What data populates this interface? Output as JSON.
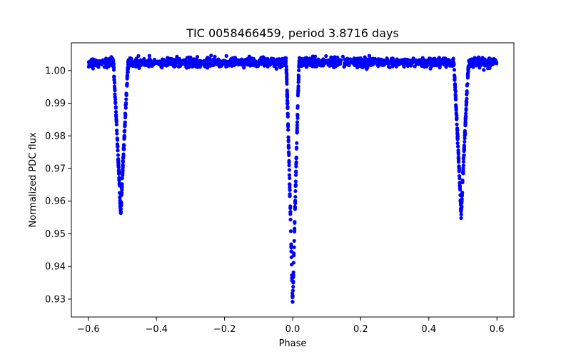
{
  "chart_data": {
    "type": "scatter",
    "title": "TIC 0058466459, period 3.8716 days",
    "xlabel": "Phase",
    "ylabel": "Normalized PDC flux",
    "xlim": [
      -0.65,
      0.65
    ],
    "ylim": [
      0.9245,
      1.0085
    ],
    "xticks": [
      -0.6,
      -0.4,
      -0.2,
      0.0,
      0.2,
      0.4,
      0.6
    ],
    "xtick_labels": [
      "−0.6",
      "−0.4",
      "−0.2",
      "0.0",
      "0.2",
      "0.4",
      "0.6"
    ],
    "yticks": [
      0.93,
      0.94,
      0.95,
      0.96,
      0.97,
      0.98,
      0.99,
      1.0
    ],
    "ytick_labels": [
      "0.93",
      "0.94",
      "0.95",
      "0.96",
      "0.97",
      "0.98",
      "0.99",
      "1.00"
    ],
    "grid": false,
    "legend": "none",
    "marker_color": "#0000ff",
    "series": [
      {
        "phase_range": [
          -0.6,
          0.6
        ],
        "baseline_flux": 1.0025,
        "eclipses": [
          {
            "center_phase": -0.505,
            "min_flux": 0.956,
            "half_width": 0.022
          },
          {
            "center_phase": 0.0,
            "min_flux": 0.928,
            "half_width": 0.019
          },
          {
            "center_phase": 0.495,
            "min_flux": 0.956,
            "half_width": 0.022
          }
        ]
      }
    ]
  }
}
